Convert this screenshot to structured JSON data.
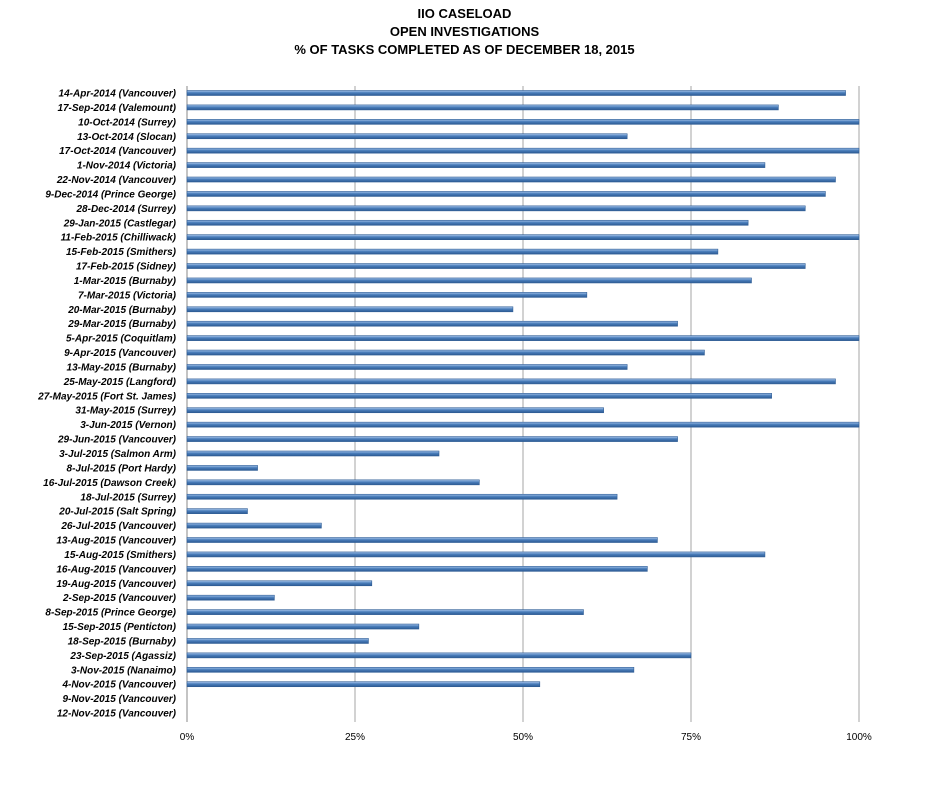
{
  "chart_data": {
    "type": "bar",
    "orientation": "horizontal",
    "title": "IIO CASELOAD",
    "subtitle_lines": [
      "OPEN INVESTIGATIONS",
      "% OF TASKS COMPLETED AS OF DECEMBER 18, 2015"
    ],
    "xlabel": "",
    "ylabel": "",
    "xlim": [
      0,
      100
    ],
    "x_ticks": [
      "0%",
      "25%",
      "50%",
      "75%",
      "100%"
    ],
    "x_tick_values": [
      0,
      25,
      50,
      75,
      100
    ],
    "grid": "vertical",
    "bar_color": "#4a7ebb",
    "categories": [
      "14-Apr-2014 (Vancouver)",
      "17-Sep-2014 (Valemount)",
      "10-Oct-2014 (Surrey)",
      "13-Oct-2014 (Slocan)",
      "17-Oct-2014 (Vancouver)",
      "1-Nov-2014 (Victoria)",
      "22-Nov-2014 (Vancouver)",
      "9-Dec-2014 (Prince George)",
      "28-Dec-2014 (Surrey)",
      "29-Jan-2015 (Castlegar)",
      "11-Feb-2015 (Chilliwack)",
      "15-Feb-2015 (Smithers)",
      "17-Feb-2015 (Sidney)",
      "1-Mar-2015 (Burnaby)",
      "7-Mar-2015 (Victoria)",
      "20-Mar-2015 (Burnaby)",
      "29-Mar-2015 (Burnaby)",
      "5-Apr-2015 (Coquitlam)",
      "9-Apr-2015 (Vancouver)",
      "13-May-2015 (Burnaby)",
      "25-May-2015 (Langford)",
      "27-May-2015 (Fort St. James)",
      "31-May-2015 (Surrey)",
      "3-Jun-2015 (Vernon)",
      "29-Jun-2015 (Vancouver)",
      "3-Jul-2015 (Salmon Arm)",
      "8-Jul-2015 (Port Hardy)",
      "16-Jul-2015 (Dawson Creek)",
      "18-Jul-2015 (Surrey)",
      "20-Jul-2015 (Salt Spring)",
      "26-Jul-2015 (Vancouver)",
      "13-Aug-2015 (Vancouver)",
      "15-Aug-2015 (Smithers)",
      "16-Aug-2015 (Vancouver)",
      "19-Aug-2015 (Vancouver)",
      "2-Sep-2015 (Vancouver)",
      "8-Sep-2015 (Prince George)",
      "15-Sep-2015 (Penticton)",
      "18-Sep-2015 (Burnaby)",
      "23-Sep-2015 (Agassiz)",
      "3-Nov-2015 (Nanaimo)",
      "4-Nov-2015 (Vancouver)",
      "9-Nov-2015 (Vancouver)",
      "12-Nov-2015 (Vancouver)"
    ],
    "values": [
      98,
      88,
      100,
      65.5,
      100,
      86,
      96.5,
      95,
      92,
      83.5,
      100,
      79,
      92,
      84,
      59.5,
      48.5,
      73,
      100,
      77,
      65.5,
      96.5,
      87,
      62,
      100,
      73,
      37.5,
      10.5,
      43.5,
      64,
      9,
      20,
      70,
      86,
      68.5,
      27.5,
      13,
      59,
      34.5,
      27,
      75,
      66.5,
      52.5,
      0,
      0
    ]
  }
}
